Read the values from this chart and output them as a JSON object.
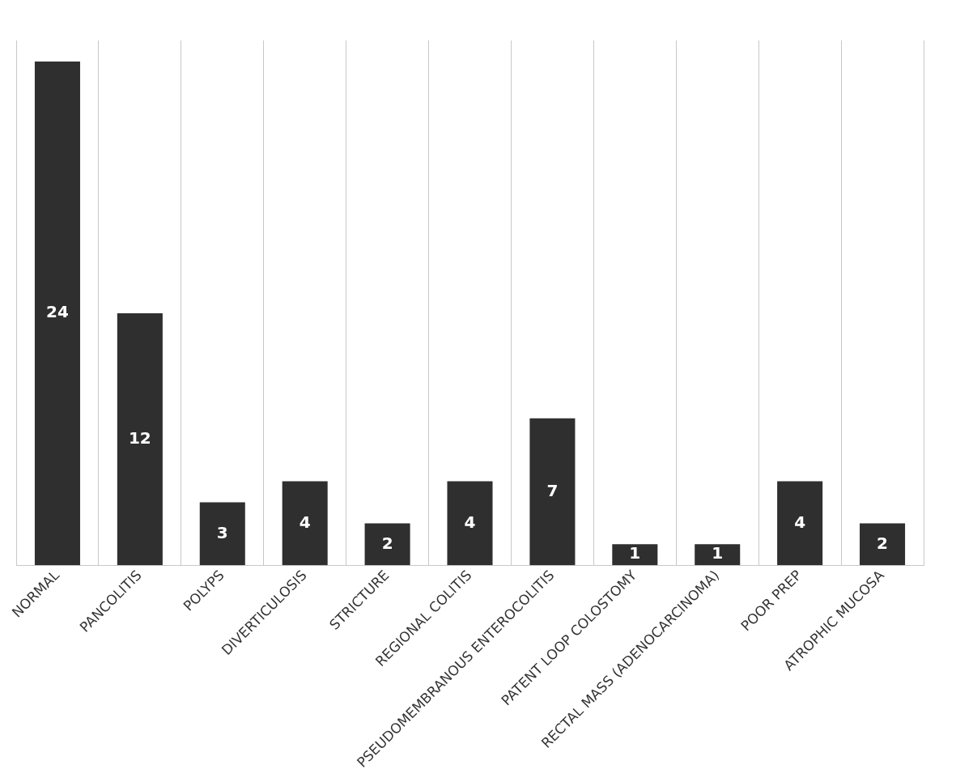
{
  "chart_data": {
    "type": "bar",
    "categories": [
      "NORMAL",
      "PANCOLITIS",
      "POLYPS",
      "DIVERTICULOSIS",
      "STRICTURE",
      "REGIONAL COLITIS",
      "PSEUDOMEMBRANOUS ENTEROCOLITIS",
      "PATENT LOOP COLOSTOMY",
      "RECTAL MASS (ADENOCARCINOMA)",
      "POOR PREP",
      "ATROPHIC MUCOSA"
    ],
    "values": [
      24,
      12,
      3,
      4,
      2,
      4,
      7,
      1,
      1,
      4,
      2
    ],
    "color": "#2f2f2f",
    "data_labels": true,
    "grid": "x",
    "tick_labels": "x"
  }
}
